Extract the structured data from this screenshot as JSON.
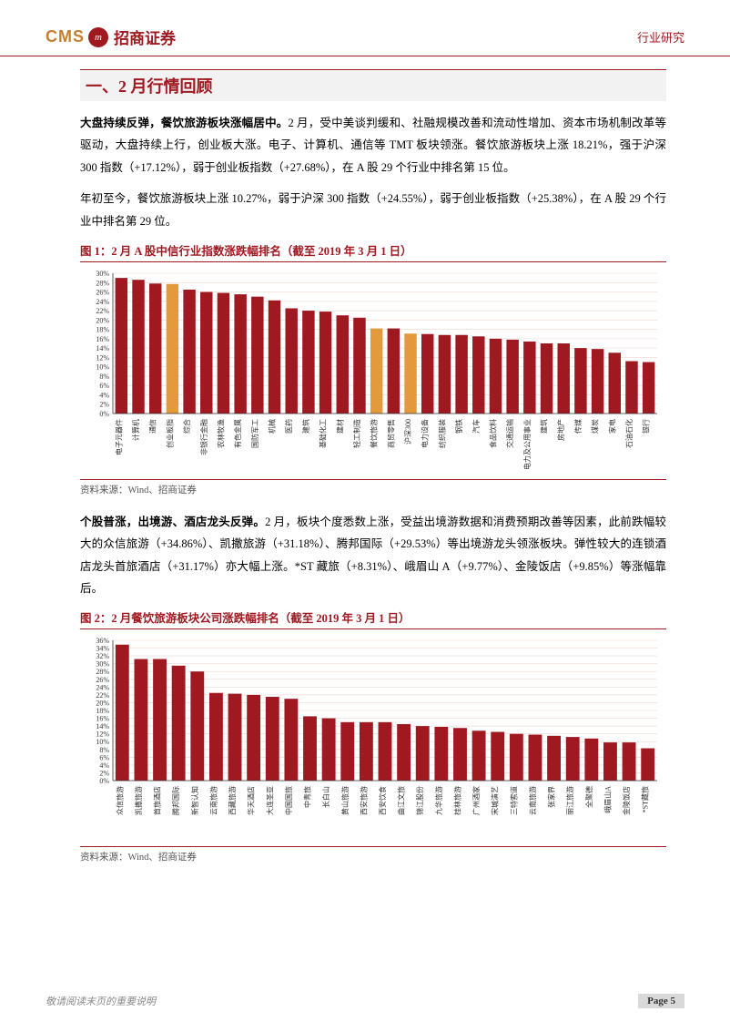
{
  "header": {
    "logo_en": "CMS",
    "logo_circle": "m",
    "logo_cn": "招商证券",
    "doc_type": "行业研究"
  },
  "section": {
    "title": "一、2 月行情回顾"
  },
  "para1_bold": "大盘持续反弹，餐饮旅游板块涨幅居中。",
  "para1_rest": "2 月，受中美谈判缓和、社融规模改善和流动性增加、资本市场机制改革等驱动，大盘持续上行，创业板大涨。电子、计算机、通信等 TMT 板块领涨。餐饮旅游板块上涨 18.21%，强于沪深 300 指数（+17.12%），弱于创业板指数（+27.68%），在 A 股 29 个行业中排名第 15 位。",
  "para2": "年初至今，餐饮旅游板块上涨 10.27%，弱于沪深 300 指数（+24.55%），弱于创业板指数（+25.38%），在 A 股 29 个行业中排名第 29 位。",
  "figure1": {
    "title": "图 1：2 月 A 股中信行业指数涨跌幅排名（截至 2019 年 3 月 1 日）",
    "source": "资料来源：Wind、招商证券",
    "type": "bar",
    "ylim": [
      0,
      30
    ],
    "ytick_step": 2,
    "ytick_suffix": "%",
    "background_color": "#ffffff",
    "grid_color": "#e8d8d0",
    "bar_color_default": "#a01820",
    "bar_color_highlight": "#e39a3c",
    "axis_color": "#333333",
    "label_fontsize": 8,
    "tick_fontsize": 8,
    "categories": [
      "电子元器件",
      "计算机",
      "通信",
      "创业板指",
      "综合",
      "非银行金融",
      "农林牧渔",
      "有色金属",
      "国防军工",
      "机械",
      "医药",
      "建筑",
      "基础化工",
      "建材",
      "轻工制造",
      "餐饮旅游",
      "商贸零售",
      "沪深300",
      "电力设备",
      "纺织服装",
      "钢铁",
      "汽车",
      "食品饮料",
      "交通运输",
      "电力及公用事业",
      "建筑",
      "房地产",
      "传媒",
      "煤炭",
      "家电",
      "石油石化",
      "银行"
    ],
    "highlight_indices": [
      3,
      15,
      17
    ],
    "values": [
      29,
      28.6,
      27.8,
      27.7,
      26.5,
      26,
      25.8,
      25.5,
      25,
      24.2,
      22.5,
      22,
      21.8,
      21,
      20.5,
      18.2,
      18.2,
      17.1,
      17,
      16.8,
      16.8,
      16.5,
      16,
      15.8,
      15.4,
      15,
      15,
      14,
      13.8,
      13,
      11.2,
      11
    ]
  },
  "para3_bold": "个股普涨，出境游、酒店龙头反弹。",
  "para3_rest": "2 月，板块个度悉数上涨，受益出境游数据和消费预期改善等因素，此前跌幅较大的众信旅游（+34.86%）、凯撒旅游（+31.18%）、腾邦国际（+29.53%）等出境游龙头领涨板块。弹性较大的连锁酒店龙头首旅酒店（+31.17%）亦大幅上涨。*ST 藏旅（+8.31%）、峨眉山 A（+9.77%）、金陵饭店（+9.85%）等涨幅靠后。",
  "figure2": {
    "title": "图 2：2 月餐饮旅游板块公司涨跌幅排名（截至 2019 年 3 月 1 日）",
    "source": "资料来源：Wind、招商证券",
    "type": "bar",
    "ylim": [
      0,
      36
    ],
    "ytick_step": 2,
    "ytick_suffix": "%",
    "background_color": "#ffffff",
    "grid_color": "#e8d8d0",
    "bar_color_default": "#a01820",
    "axis_color": "#333333",
    "label_fontsize": 8,
    "tick_fontsize": 8,
    "categories": [
      "众信旅游",
      "凯撒旅游",
      "首旅酒店",
      "腾邦国际",
      "新智认知",
      "云南旅游",
      "西藏旅游",
      "华天酒店",
      "大连圣亚",
      "中国国旅",
      "中青旅",
      "长白山",
      "黄山旅游",
      "西安旅游",
      "西安饮食",
      "曲江文旅",
      "锦江股份",
      "九华旅游",
      "桂林旅游",
      "广州酒家",
      "宋城演艺",
      "三特索道",
      "云南旅游",
      "张家界",
      "丽江旅游",
      "全聚德",
      "峨眉山A",
      "金陵饭店",
      "*ST藏旅"
    ],
    "highlight_indices": [],
    "values": [
      34.9,
      31.2,
      31.2,
      29.5,
      28,
      22.5,
      22.3,
      22,
      21.5,
      21,
      16.5,
      16,
      15,
      15,
      15,
      14.5,
      14,
      13.8,
      13.5,
      12.8,
      12.5,
      12,
      11.8,
      11.5,
      11.2,
      10.8,
      9.8,
      9.8,
      8.3
    ]
  },
  "footer": {
    "note": "敬请阅读末页的重要说明",
    "page": "Page 5"
  }
}
